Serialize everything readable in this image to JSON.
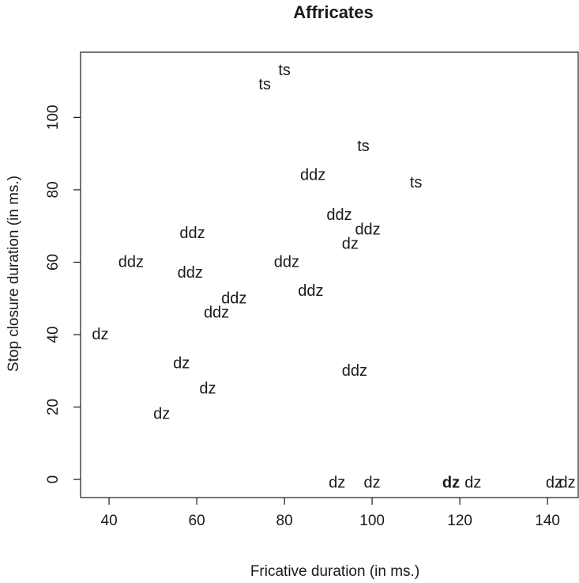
{
  "chart_data": {
    "type": "scatter",
    "title": "Affricates",
    "xlabel": "Fricative duration (in ms.)",
    "ylabel": "Stop closure duration (in ms.)",
    "xlim": [
      33.5,
      147
    ],
    "ylim": [
      -5,
      118
    ],
    "xticks": [
      40,
      60,
      80,
      100,
      120,
      140
    ],
    "yticks": [
      0,
      20,
      40,
      60,
      80,
      100
    ],
    "grid": false,
    "points": [
      {
        "x": 80,
        "y": 113,
        "label": "ts",
        "bold": false
      },
      {
        "x": 75.5,
        "y": 109,
        "label": "ts",
        "bold": false
      },
      {
        "x": 98,
        "y": 92,
        "label": "ts",
        "bold": false
      },
      {
        "x": 86.5,
        "y": 84,
        "label": "ddz",
        "bold": false
      },
      {
        "x": 110,
        "y": 82,
        "label": "ts",
        "bold": false
      },
      {
        "x": 92.5,
        "y": 73,
        "label": "ddz",
        "bold": false
      },
      {
        "x": 99,
        "y": 69,
        "label": "ddz",
        "bold": false
      },
      {
        "x": 59,
        "y": 68,
        "label": "ddz",
        "bold": false
      },
      {
        "x": 95,
        "y": 65,
        "label": "dz",
        "bold": false
      },
      {
        "x": 45,
        "y": 60,
        "label": "ddz",
        "bold": false
      },
      {
        "x": 80.5,
        "y": 60,
        "label": "ddz",
        "bold": false
      },
      {
        "x": 58.5,
        "y": 57,
        "label": "ddz",
        "bold": false
      },
      {
        "x": 86,
        "y": 52,
        "label": "ddz",
        "bold": false
      },
      {
        "x": 68.5,
        "y": 50,
        "label": "ddz",
        "bold": false
      },
      {
        "x": 64.5,
        "y": 46,
        "label": "ddz",
        "bold": false
      },
      {
        "x": 38,
        "y": 40,
        "label": "dz",
        "bold": false
      },
      {
        "x": 56.5,
        "y": 32,
        "label": "dz",
        "bold": false
      },
      {
        "x": 96,
        "y": 30,
        "label": "ddz",
        "bold": false
      },
      {
        "x": 62.5,
        "y": 25,
        "label": "dz",
        "bold": false
      },
      {
        "x": 52,
        "y": 18,
        "label": "dz",
        "bold": false
      },
      {
        "x": 92,
        "y": -1,
        "label": "dz",
        "bold": false
      },
      {
        "x": 100,
        "y": -1,
        "label": "dz",
        "bold": false
      },
      {
        "x": 118,
        "y": -1,
        "label": "dz",
        "bold": true
      },
      {
        "x": 123,
        "y": -1,
        "label": "dz",
        "bold": false
      },
      {
        "x": 141.5,
        "y": -1,
        "label": "dz",
        "bold": false
      },
      {
        "x": 144.5,
        "y": -1,
        "label": "dz",
        "bold": false
      }
    ]
  }
}
